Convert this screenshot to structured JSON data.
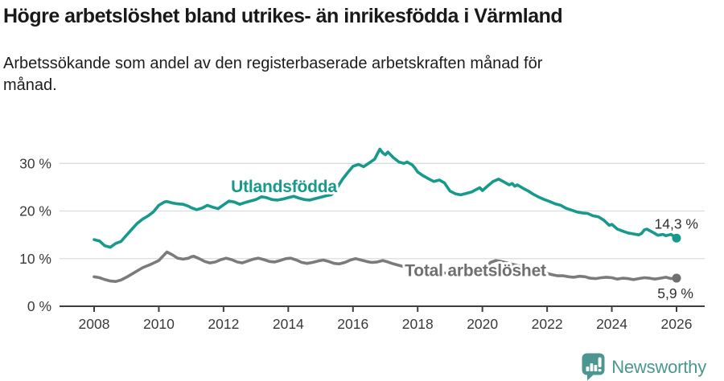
{
  "header": {
    "title": "Högre arbetslöshet bland utrikes- än inrikesfödda i Värmland",
    "subtitle": "Arbetssökande som andel av den registerbaserade arbetskraften månad för månad."
  },
  "footer": {
    "brand": "Newsworthy",
    "logo_icon": "newsworthy-speech-bubble-bar-chart-icon",
    "brand_color": "#4c968f"
  },
  "chart_data": {
    "type": "line",
    "title": "Högre arbetslöshet bland utrikes- än inrikesfödda i Värmland",
    "subtitle": "Arbetssökande som andel av den registerbaserade arbetskraften månad för månad.",
    "xlabel": "",
    "ylabel": "",
    "xlim": [
      2007.8,
      2026.9
    ],
    "ylim": [
      0,
      35.6
    ],
    "grid": "horizontal",
    "legend": "inline-labels",
    "grid_color": "#dcdcdc",
    "axis_color": "#3f3f3f",
    "axis_text_color": "#3a3a3a",
    "value_label_color": "#2f2f2f",
    "x_ticks": [
      {
        "value": 2008,
        "label": "2008"
      },
      {
        "value": 2010,
        "label": "2010"
      },
      {
        "value": 2012,
        "label": "2012"
      },
      {
        "value": 2014,
        "label": "2014"
      },
      {
        "value": 2016,
        "label": "2016"
      },
      {
        "value": 2018,
        "label": "2018"
      },
      {
        "value": 2020,
        "label": "2020"
      },
      {
        "value": 2022,
        "label": "2022"
      },
      {
        "value": 2024,
        "label": "2024"
      },
      {
        "value": 2026,
        "label": "2026"
      }
    ],
    "y_ticks": [
      {
        "value": 0,
        "label": "0 %"
      },
      {
        "value": 10,
        "label": "10 %"
      },
      {
        "value": 20,
        "label": "20 %"
      },
      {
        "value": 30,
        "label": "30 %"
      }
    ],
    "series": [
      {
        "name": "Utlandsfödda",
        "slug": "utlandsfodda",
        "color": "#17998c",
        "label_color": "#17998c",
        "dot_color": "#17998c",
        "end_label": "14,3 %",
        "end_value": 14.3,
        "label": {
          "text": "Utlandsfödda",
          "x": 2012.23,
          "y": 24.0
        },
        "points": [
          [
            2008.0,
            14.0
          ],
          [
            2008.17,
            13.7
          ],
          [
            2008.33,
            12.7
          ],
          [
            2008.5,
            12.4
          ],
          [
            2008.67,
            13.2
          ],
          [
            2008.83,
            13.6
          ],
          [
            2009.0,
            14.9
          ],
          [
            2009.17,
            16.2
          ],
          [
            2009.33,
            17.4
          ],
          [
            2009.5,
            18.3
          ],
          [
            2009.67,
            19.0
          ],
          [
            2009.83,
            19.8
          ],
          [
            2010.0,
            21.2
          ],
          [
            2010.17,
            21.9
          ],
          [
            2010.25,
            22.0
          ],
          [
            2010.42,
            21.7
          ],
          [
            2010.58,
            21.5
          ],
          [
            2010.75,
            21.4
          ],
          [
            2010.92,
            21.0
          ],
          [
            2011.0,
            20.7
          ],
          [
            2011.17,
            20.3
          ],
          [
            2011.33,
            20.6
          ],
          [
            2011.5,
            21.2
          ],
          [
            2011.67,
            20.8
          ],
          [
            2011.83,
            20.5
          ],
          [
            2012.0,
            21.3
          ],
          [
            2012.17,
            22.1
          ],
          [
            2012.33,
            21.9
          ],
          [
            2012.5,
            21.4
          ],
          [
            2012.67,
            21.8
          ],
          [
            2012.83,
            22.1
          ],
          [
            2013.0,
            22.4
          ],
          [
            2013.17,
            23.0
          ],
          [
            2013.33,
            22.8
          ],
          [
            2013.5,
            22.4
          ],
          [
            2013.67,
            22.3
          ],
          [
            2013.83,
            22.5
          ],
          [
            2014.0,
            22.8
          ],
          [
            2014.17,
            23.1
          ],
          [
            2014.33,
            22.7
          ],
          [
            2014.5,
            22.4
          ],
          [
            2014.67,
            22.3
          ],
          [
            2014.83,
            22.6
          ],
          [
            2015.0,
            22.9
          ],
          [
            2015.17,
            23.2
          ],
          [
            2015.33,
            23.4
          ],
          [
            2015.5,
            24.8
          ],
          [
            2015.67,
            26.6
          ],
          [
            2015.83,
            28.0
          ],
          [
            2016.0,
            29.4
          ],
          [
            2016.17,
            29.8
          ],
          [
            2016.33,
            29.3
          ],
          [
            2016.5,
            30.1
          ],
          [
            2016.67,
            30.9
          ],
          [
            2016.83,
            33.0
          ],
          [
            2016.92,
            32.2
          ],
          [
            2017.0,
            31.8
          ],
          [
            2017.08,
            32.4
          ],
          [
            2017.25,
            31.2
          ],
          [
            2017.42,
            30.3
          ],
          [
            2017.58,
            30.0
          ],
          [
            2017.67,
            30.3
          ],
          [
            2017.83,
            29.7
          ],
          [
            2017.92,
            29.0
          ],
          [
            2018.0,
            28.2
          ],
          [
            2018.17,
            27.4
          ],
          [
            2018.33,
            26.8
          ],
          [
            2018.5,
            26.2
          ],
          [
            2018.67,
            26.5
          ],
          [
            2018.83,
            25.9
          ],
          [
            2019.0,
            24.2
          ],
          [
            2019.17,
            23.6
          ],
          [
            2019.33,
            23.4
          ],
          [
            2019.5,
            23.7
          ],
          [
            2019.67,
            24.0
          ],
          [
            2019.83,
            24.6
          ],
          [
            2019.92,
            24.9
          ],
          [
            2020.0,
            24.3
          ],
          [
            2020.17,
            25.3
          ],
          [
            2020.33,
            26.2
          ],
          [
            2020.5,
            26.7
          ],
          [
            2020.67,
            26.1
          ],
          [
            2020.83,
            25.5
          ],
          [
            2020.92,
            25.8
          ],
          [
            2021.0,
            25.2
          ],
          [
            2021.08,
            25.5
          ],
          [
            2021.25,
            24.8
          ],
          [
            2021.42,
            24.2
          ],
          [
            2021.58,
            23.5
          ],
          [
            2021.75,
            22.9
          ],
          [
            2021.92,
            22.4
          ],
          [
            2022.08,
            22.0
          ],
          [
            2022.25,
            21.5
          ],
          [
            2022.42,
            21.2
          ],
          [
            2022.58,
            20.6
          ],
          [
            2022.75,
            20.2
          ],
          [
            2022.92,
            19.8
          ],
          [
            2023.08,
            19.6
          ],
          [
            2023.25,
            19.5
          ],
          [
            2023.42,
            19.0
          ],
          [
            2023.58,
            18.8
          ],
          [
            2023.75,
            18.1
          ],
          [
            2023.92,
            17.0
          ],
          [
            2024.0,
            17.2
          ],
          [
            2024.17,
            16.2
          ],
          [
            2024.33,
            15.8
          ],
          [
            2024.5,
            15.4
          ],
          [
            2024.67,
            15.2
          ],
          [
            2024.83,
            15.0
          ],
          [
            2024.92,
            15.3
          ],
          [
            2025.0,
            16.0
          ],
          [
            2025.08,
            16.2
          ],
          [
            2025.25,
            15.6
          ],
          [
            2025.42,
            14.9
          ],
          [
            2025.58,
            15.1
          ],
          [
            2025.67,
            14.8
          ],
          [
            2025.83,
            15.1
          ],
          [
            2026.0,
            14.3
          ]
        ]
      },
      {
        "name": "Total arbetslöshet",
        "slug": "total-arbetsloshet",
        "color": "#7b7b7b",
        "label_color": "#6f6f6f",
        "dot_color": "#6f6f6f",
        "end_label": "5,9 %",
        "end_value": 5.9,
        "label": {
          "text": "Total arbetslöshet",
          "x": 2017.6,
          "y": 6.33
        },
        "points": [
          [
            2008.0,
            6.2
          ],
          [
            2008.17,
            6.0
          ],
          [
            2008.33,
            5.6
          ],
          [
            2008.5,
            5.3
          ],
          [
            2008.67,
            5.2
          ],
          [
            2008.83,
            5.5
          ],
          [
            2009.0,
            6.1
          ],
          [
            2009.25,
            7.1
          ],
          [
            2009.5,
            8.1
          ],
          [
            2009.75,
            8.8
          ],
          [
            2010.0,
            9.6
          ],
          [
            2010.08,
            10.2
          ],
          [
            2010.25,
            11.4
          ],
          [
            2010.42,
            10.8
          ],
          [
            2010.58,
            10.1
          ],
          [
            2010.75,
            9.9
          ],
          [
            2010.92,
            10.1
          ],
          [
            2011.0,
            10.4
          ],
          [
            2011.08,
            10.5
          ],
          [
            2011.25,
            10.0
          ],
          [
            2011.42,
            9.4
          ],
          [
            2011.58,
            9.1
          ],
          [
            2011.75,
            9.3
          ],
          [
            2011.92,
            9.8
          ],
          [
            2012.08,
            10.1
          ],
          [
            2012.25,
            9.8
          ],
          [
            2012.42,
            9.3
          ],
          [
            2012.58,
            9.1
          ],
          [
            2012.75,
            9.5
          ],
          [
            2012.92,
            9.9
          ],
          [
            2013.08,
            10.1
          ],
          [
            2013.25,
            9.8
          ],
          [
            2013.42,
            9.4
          ],
          [
            2013.58,
            9.3
          ],
          [
            2013.75,
            9.6
          ],
          [
            2013.92,
            10.0
          ],
          [
            2014.08,
            10.1
          ],
          [
            2014.25,
            9.7
          ],
          [
            2014.42,
            9.2
          ],
          [
            2014.58,
            9.0
          ],
          [
            2014.75,
            9.2
          ],
          [
            2014.92,
            9.5
          ],
          [
            2015.08,
            9.7
          ],
          [
            2015.25,
            9.4
          ],
          [
            2015.42,
            9.0
          ],
          [
            2015.58,
            8.9
          ],
          [
            2015.75,
            9.2
          ],
          [
            2015.92,
            9.7
          ],
          [
            2016.08,
            10.0
          ],
          [
            2016.25,
            9.7
          ],
          [
            2016.42,
            9.4
          ],
          [
            2016.58,
            9.2
          ],
          [
            2016.75,
            9.3
          ],
          [
            2016.92,
            9.6
          ],
          [
            2017.08,
            9.3
          ],
          [
            2017.25,
            8.9
          ],
          [
            2017.42,
            8.6
          ],
          [
            2017.58,
            8.3
          ],
          [
            2017.75,
            8.0
          ],
          [
            2017.92,
            7.9
          ],
          [
            2018.08,
            7.8
          ],
          [
            2018.33,
            7.4
          ],
          [
            2018.58,
            7.1
          ],
          [
            2018.83,
            7.0
          ],
          [
            2019.08,
            6.8
          ],
          [
            2019.33,
            6.6
          ],
          [
            2019.58,
            6.5
          ],
          [
            2019.83,
            6.7
          ],
          [
            2020.0,
            7.1
          ],
          [
            2020.25,
            9.2
          ],
          [
            2020.42,
            9.6
          ],
          [
            2020.58,
            9.4
          ],
          [
            2020.83,
            9.0
          ],
          [
            2021.0,
            8.7
          ],
          [
            2021.25,
            8.2
          ],
          [
            2021.5,
            7.7
          ],
          [
            2021.75,
            7.3
          ],
          [
            2022.0,
            6.9
          ],
          [
            2022.17,
            6.6
          ],
          [
            2022.33,
            6.4
          ],
          [
            2022.5,
            6.4
          ],
          [
            2022.67,
            6.2
          ],
          [
            2022.83,
            6.1
          ],
          [
            2023.0,
            6.3
          ],
          [
            2023.17,
            6.2
          ],
          [
            2023.33,
            5.9
          ],
          [
            2023.5,
            5.8
          ],
          [
            2023.67,
            6.0
          ],
          [
            2023.83,
            6.1
          ],
          [
            2024.0,
            6.0
          ],
          [
            2024.17,
            5.7
          ],
          [
            2024.33,
            5.9
          ],
          [
            2024.5,
            5.8
          ],
          [
            2024.67,
            5.6
          ],
          [
            2024.83,
            5.8
          ],
          [
            2025.0,
            6.0
          ],
          [
            2025.17,
            5.9
          ],
          [
            2025.33,
            5.7
          ],
          [
            2025.5,
            5.9
          ],
          [
            2025.67,
            6.1
          ],
          [
            2025.83,
            5.8
          ],
          [
            2026.0,
            5.9
          ]
        ]
      }
    ]
  }
}
